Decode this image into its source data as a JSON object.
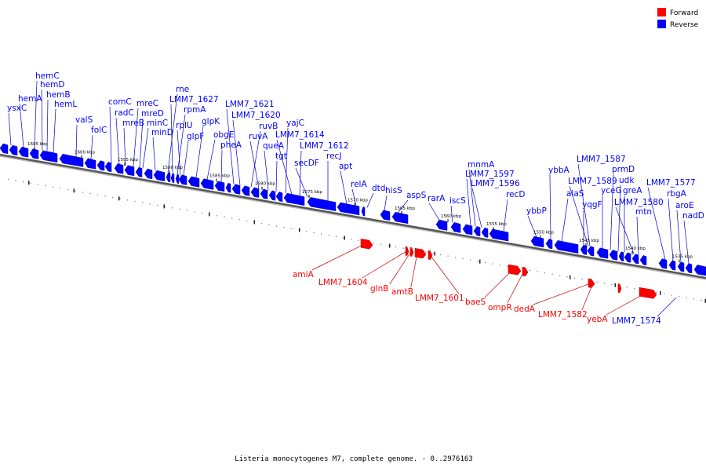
{
  "legend": [
    {
      "label": "Forward",
      "color": "#ff0000"
    },
    {
      "label": "Reverse",
      "color": "#0000ff"
    }
  ],
  "caption": "Listeria monocytogenes M7, complete genome. - 0..2976163",
  "colors": {
    "forward": "#ff0000",
    "reverse": "#0000ff",
    "forward_line": "#cc0000",
    "reverse_line": "#0000cc",
    "backbone": "#555555"
  },
  "ticks": [
    "1605 kbp",
    "1600 kbp",
    "1595 kbp",
    "1590 kbp",
    "1585 kbp",
    "1580 kbp",
    "1575 kbp",
    "1570 kbp",
    "1565 kbp",
    "1560 kbp",
    "1555 kbp",
    "1550 kbp",
    "1545 kbp",
    "1540 kbp",
    "1535 kbp"
  ],
  "reverse_labels": [
    "ysxC",
    "hemA",
    "hemC",
    "hemD",
    "hemB",
    "hemL",
    "valS",
    "folC",
    "comC",
    "radC",
    "mreB",
    "mreC",
    "mreD",
    "minC",
    "minD",
    "rne",
    "LMM7_1627",
    "rpmA",
    "rplU",
    "glpF",
    "glpK",
    "obgE",
    "pheA",
    "LMM7_1621",
    "LMM7_1620",
    "ruvB",
    "ruvA",
    "queA",
    "tgt",
    "yajC",
    "LMM7_1614",
    "LMM7_1612",
    "secDF",
    "recJ",
    "apt",
    "relA",
    "dtd",
    "hisS",
    "aspS",
    "rarA",
    "iscS",
    "mnmA",
    "LMM7_1597",
    "LMM7_1596",
    "recD",
    "ybbP",
    "ybbA",
    "alaS",
    "yqgF",
    "LMM7_1587",
    "LMM7_1589",
    "yceG",
    "prmD",
    "udk",
    "greA",
    "LMM7_1580",
    "mtn",
    "LMM7_1577",
    "rbgA",
    "aroE",
    "nadD",
    "LMM7_1574"
  ],
  "forward_labels": [
    "amiA",
    "LMM7_1604",
    "glnB",
    "amtB",
    "LMM7_1601",
    "baeS",
    "ompR",
    "dedA",
    "LMM7_1582",
    "yebA"
  ]
}
